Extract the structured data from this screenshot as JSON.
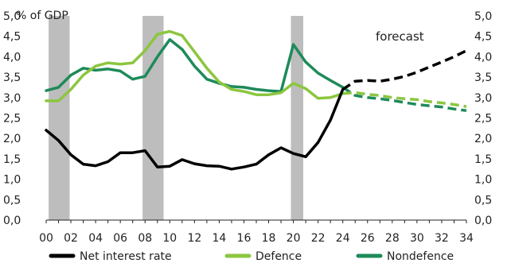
{
  "chart_data": {
    "type": "line",
    "unit_label": "% of GDP",
    "annotation": "forecast",
    "x_start": 2000,
    "x_end": 2034,
    "actual_end_year": 2024,
    "x_ticks": [
      "00",
      "02",
      "04",
      "06",
      "08",
      "10",
      "12",
      "14",
      "16",
      "18",
      "20",
      "22",
      "24",
      "26",
      "28",
      "30",
      "32",
      "34"
    ],
    "y_ticks": [
      "0,0",
      "0,5",
      "1,0",
      "1,5",
      "2,0",
      "2,5",
      "3,0",
      "3,5",
      "4,0",
      "4,5",
      "5,0"
    ],
    "ylim": [
      0,
      5
    ],
    "recession_bands": [
      [
        2000.2,
        2001.9
      ],
      [
        2007.8,
        2009.5
      ],
      [
        2019.8,
        2020.8
      ]
    ],
    "x": [
      2000,
      2001,
      2002,
      2003,
      2004,
      2005,
      2006,
      2007,
      2008,
      2009,
      2010,
      2011,
      2012,
      2013,
      2014,
      2015,
      2016,
      2017,
      2018,
      2019,
      2020,
      2021,
      2022,
      2023,
      2024,
      2025,
      2026,
      2027,
      2028,
      2029,
      2030,
      2031,
      2032,
      2033,
      2034
    ],
    "series": [
      {
        "name": "Net interest rate",
        "color": "#000000",
        "values": [
          2.2,
          1.95,
          1.6,
          1.37,
          1.33,
          1.43,
          1.65,
          1.65,
          1.7,
          1.3,
          1.32,
          1.48,
          1.38,
          1.33,
          1.32,
          1.25,
          1.3,
          1.37,
          1.6,
          1.77,
          1.63,
          1.55,
          1.9,
          2.45,
          3.2,
          3.4,
          3.42,
          3.4,
          3.45,
          3.52,
          3.62,
          3.75,
          3.87,
          4.0,
          4.15
        ]
      },
      {
        "name": "Defence",
        "color": "#8CC63F",
        "values": [
          2.92,
          2.92,
          3.2,
          3.55,
          3.77,
          3.85,
          3.82,
          3.85,
          4.15,
          4.55,
          4.62,
          4.52,
          4.12,
          3.72,
          3.38,
          3.2,
          3.15,
          3.07,
          3.07,
          3.12,
          3.35,
          3.22,
          2.98,
          3.0,
          3.1,
          3.12,
          3.08,
          3.05,
          3.0,
          2.97,
          2.95,
          2.9,
          2.87,
          2.83,
          2.78
        ]
      },
      {
        "name": "Nondefence",
        "color": "#1E8A5A",
        "values": [
          3.17,
          3.25,
          3.55,
          3.72,
          3.67,
          3.7,
          3.65,
          3.45,
          3.52,
          4.0,
          4.42,
          4.18,
          3.77,
          3.45,
          3.35,
          3.27,
          3.25,
          3.2,
          3.17,
          3.15,
          4.3,
          3.87,
          3.6,
          3.42,
          3.25,
          3.05,
          3.0,
          2.97,
          2.93,
          2.88,
          2.83,
          2.8,
          2.77,
          2.72,
          2.68
        ]
      }
    ]
  }
}
